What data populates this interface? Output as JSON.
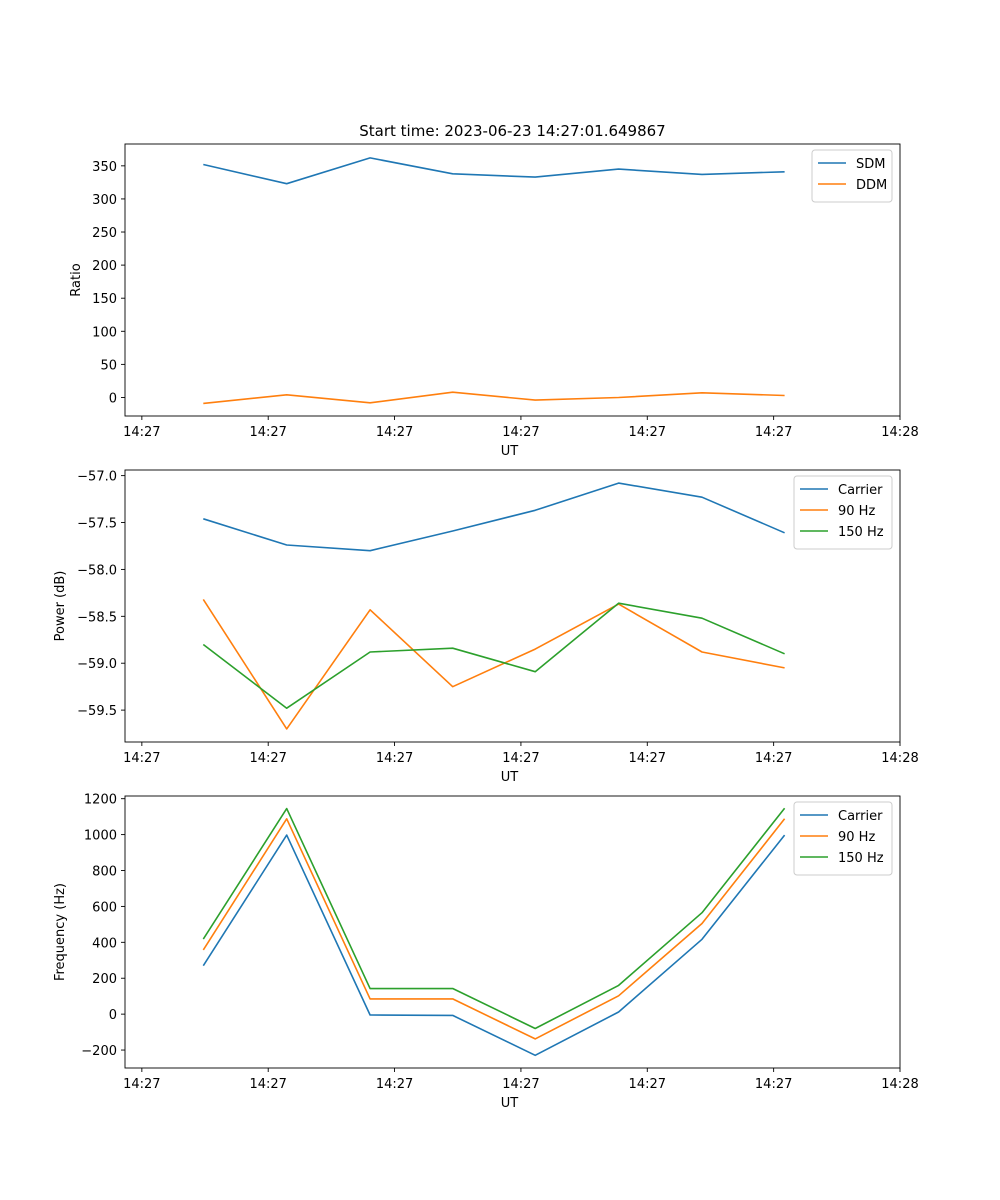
{
  "colors": {
    "c0": "#1f77b4",
    "c1": "#ff7f0e",
    "c2": "#2ca02c"
  },
  "chart_data": [
    {
      "type": "line",
      "title": "Start time: 2023-06-23 14:27:01.649867",
      "xlabel": "UT",
      "ylabel": "Ratio",
      "xlim": [
        0,
        9.2
      ],
      "ylim": [
        -28,
        383
      ],
      "xticks": [
        0.2,
        1.7,
        3.2,
        4.7,
        6.2,
        7.7,
        9.2
      ],
      "xtick_labels": [
        "14:27",
        "14:27",
        "14:27",
        "14:27",
        "14:27",
        "14:27",
        "14:28"
      ],
      "yticks": [
        0,
        50,
        100,
        150,
        200,
        250,
        300,
        350
      ],
      "ytick_labels": [
        "0",
        "50",
        "100",
        "150",
        "200",
        "250",
        "300",
        "350"
      ],
      "grid": false,
      "legend_position": "top-right",
      "x": [
        0.93,
        1.92,
        2.91,
        3.89,
        4.87,
        5.86,
        6.85,
        7.83
      ],
      "series": [
        {
          "name": "SDM",
          "color": "c0",
          "values": [
            352,
            323,
            362,
            338,
            333,
            345,
            337,
            341
          ]
        },
        {
          "name": "DDM",
          "color": "c1",
          "values": [
            -9,
            4,
            -8,
            8,
            -4,
            0,
            7,
            3
          ]
        }
      ]
    },
    {
      "type": "line",
      "title": "",
      "xlabel": "UT",
      "ylabel": "Power (dB)",
      "xlim": [
        0,
        9.2
      ],
      "ylim": [
        -59.84,
        -56.94
      ],
      "xticks": [
        0.2,
        1.7,
        3.2,
        4.7,
        6.2,
        7.7,
        9.2
      ],
      "xtick_labels": [
        "14:27",
        "14:27",
        "14:27",
        "14:27",
        "14:27",
        "14:27",
        "14:28"
      ],
      "yticks": [
        -59.5,
        -59.0,
        -58.5,
        -58.0,
        -57.5,
        -57.0
      ],
      "ytick_labels": [
        "−59.5",
        "−59.0",
        "−58.5",
        "−58.0",
        "−57.5",
        "−57.0"
      ],
      "grid": false,
      "legend_position": "top-right",
      "x": [
        0.93,
        1.92,
        2.91,
        3.89,
        4.87,
        5.86,
        6.85,
        7.83
      ],
      "series": [
        {
          "name": "Carrier",
          "color": "c0",
          "values": [
            -57.46,
            -57.74,
            -57.8,
            -57.59,
            -57.37,
            -57.08,
            -57.23,
            -57.61
          ]
        },
        {
          "name": "90 Hz",
          "color": "c1",
          "values": [
            -58.32,
            -59.7,
            -58.43,
            -59.25,
            -58.85,
            -58.37,
            -58.88,
            -59.05
          ]
        },
        {
          "name": "150 Hz",
          "color": "c2",
          "values": [
            -58.8,
            -59.48,
            -58.88,
            -58.84,
            -59.09,
            -58.36,
            -58.52,
            -58.9
          ]
        }
      ]
    },
    {
      "type": "line",
      "title": "",
      "xlabel": "UT",
      "ylabel": "Frequency (Hz)",
      "xlim": [
        0,
        9.2
      ],
      "ylim": [
        -300,
        1215
      ],
      "xticks": [
        0.2,
        1.7,
        3.2,
        4.7,
        6.2,
        7.7,
        9.2
      ],
      "xtick_labels": [
        "14:27",
        "14:27",
        "14:27",
        "14:27",
        "14:27",
        "14:27",
        "14:28"
      ],
      "yticks": [
        -200,
        0,
        200,
        400,
        600,
        800,
        1000,
        1200
      ],
      "ytick_labels": [
        "−200",
        "0",
        "200",
        "400",
        "600",
        "800",
        "1000",
        "1200"
      ],
      "grid": false,
      "legend_position": "top-right",
      "x": [
        0.93,
        1.92,
        2.91,
        3.89,
        4.87,
        5.86,
        6.85,
        7.83
      ],
      "series": [
        {
          "name": "Carrier",
          "color": "c0",
          "values": [
            270,
            997,
            -5,
            -7,
            -229,
            12,
            417,
            997
          ]
        },
        {
          "name": "90 Hz",
          "color": "c1",
          "values": [
            358,
            1088,
            85,
            85,
            -138,
            102,
            505,
            1088
          ]
        },
        {
          "name": "150 Hz",
          "color": "c2",
          "values": [
            418,
            1145,
            142,
            143,
            -80,
            160,
            565,
            1147
          ]
        }
      ]
    }
  ]
}
